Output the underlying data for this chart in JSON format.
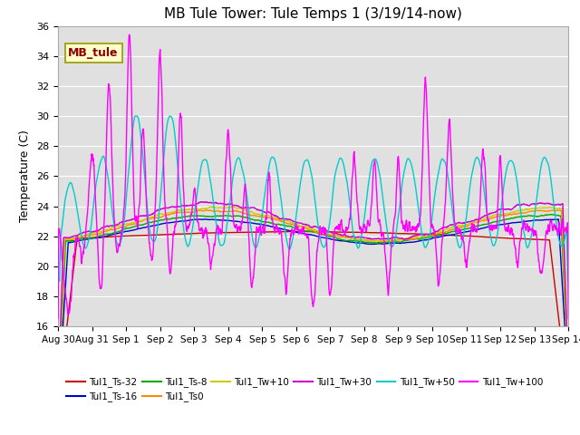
{
  "title": "MB Tule Tower: Tule Temps 1 (3/19/14-now)",
  "ylabel": "Temperature (C)",
  "ylim": [
    16,
    36
  ],
  "yticks": [
    16,
    18,
    20,
    22,
    24,
    26,
    28,
    30,
    32,
    34,
    36
  ],
  "xtick_labels": [
    "Aug 30",
    "Aug 31",
    "Sep 1",
    "Sep 2",
    "Sep 3",
    "Sep 4",
    "Sep 5",
    "Sep 6",
    "Sep 7",
    "Sep 8",
    "Sep 9",
    "Sep 10",
    "Sep 11",
    "Sep 12",
    "Sep 13",
    "Sep 14"
  ],
  "bg_color": "#e0e0e0",
  "fig_color": "#ffffff",
  "series_colors": {
    "Ts-32": "#cc0000",
    "Ts-16": "#0000cc",
    "Ts-8": "#00aa00",
    "Ts0": "#ff8800",
    "Tw+10": "#cccc00",
    "Tw+30": "#cc00cc",
    "Tw+50": "#00cccc",
    "Tw+100": "#ff00ff"
  },
  "legend_row1": [
    "Tul1_Ts-32",
    "Tul1_Ts-16",
    "Tul1_Ts-8",
    "Tul1_Ts0",
    "Tul1_Tw+10",
    "Tul1_Tw+30"
  ],
  "legend_row2": [
    "Tul1_Tw+50",
    "Tul1_Tw+100"
  ],
  "legend_colors_row1": [
    "#cc0000",
    "#0000cc",
    "#00aa00",
    "#ff8800",
    "#cccc00",
    "#cc00cc"
  ],
  "legend_colors_row2": [
    "#00cccc",
    "#ff00ff"
  ],
  "annotation_text": "MB_tule"
}
